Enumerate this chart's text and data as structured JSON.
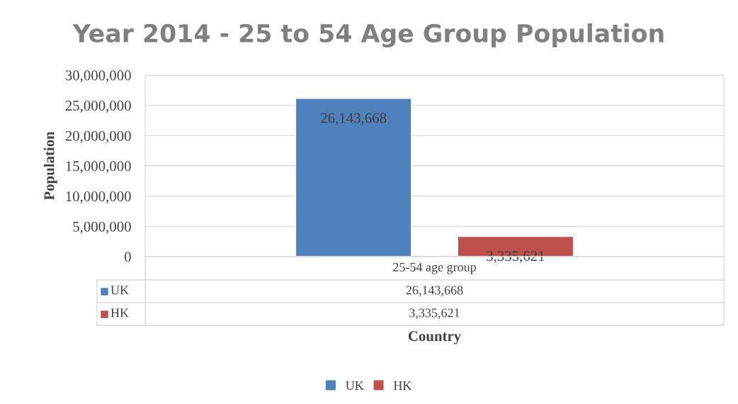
{
  "chart_data": {
    "type": "bar",
    "title": "Year 2014 - 25 to 54 Age Group Population",
    "xlabel": "Country",
    "ylabel": "Population",
    "categories": [
      "25-54 age group"
    ],
    "series": [
      {
        "name": "UK",
        "color": "#4f81bd",
        "values": [
          26143668
        ],
        "value_labels": [
          "26,143,668"
        ]
      },
      {
        "name": "HK",
        "color": "#c0504d",
        "values": [
          3335621
        ],
        "value_labels": [
          "3,335,621"
        ]
      }
    ],
    "ylim": [
      0,
      30000000
    ],
    "yticks": [
      0,
      {
        "value": 5000000,
        "label": "5,000,000"
      },
      {
        "value": 10000000,
        "label": "10,000,000"
      },
      {
        "value": 15000000,
        "label": "15,000,000"
      },
      {
        "value": 20000000,
        "label": "20,000,000"
      },
      {
        "value": 25000000,
        "label": "25,000,000"
      },
      {
        "value": 30000000,
        "label": "30,000,000"
      }
    ],
    "grid": "y",
    "legend": "bottom"
  }
}
